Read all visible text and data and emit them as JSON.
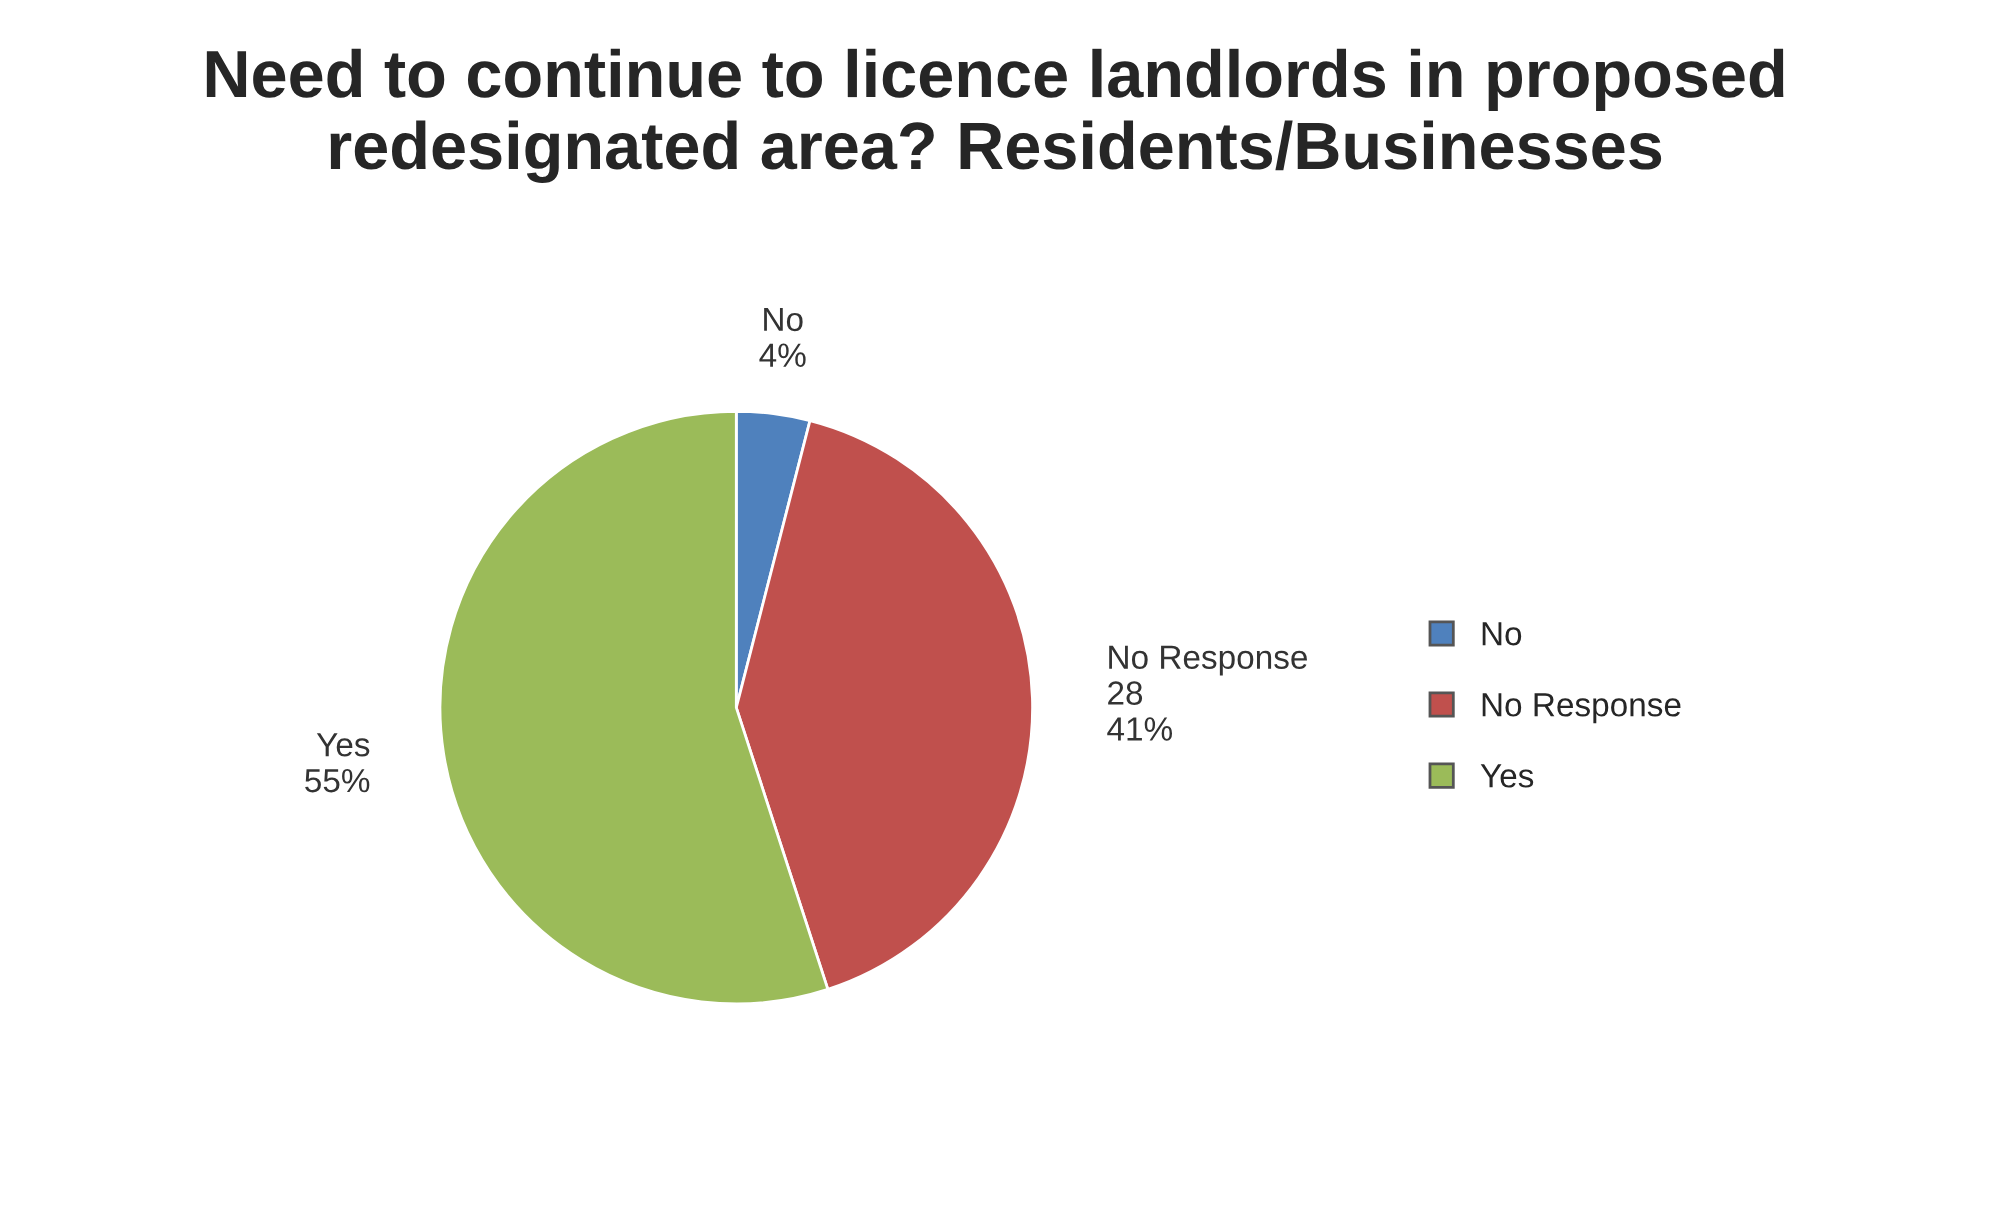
{
  "chart_data": {
    "type": "pie",
    "title": "Need to continue to licence landlords in proposed redesignated area? Residents/Businesses",
    "categories": [
      "No",
      "No Response",
      "Yes"
    ],
    "values": [
      4,
      41,
      55
    ],
    "value_labels": [
      "4%",
      "28\n41%",
      "55%"
    ],
    "colors": [
      "#4f81bd",
      "#c0504d",
      "#9bbb59"
    ],
    "legend": "right"
  }
}
